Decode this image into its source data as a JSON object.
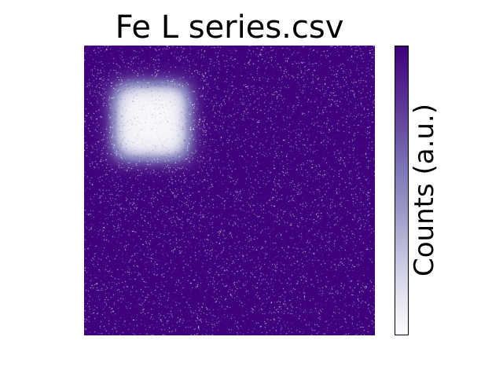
{
  "chart_data": {
    "type": "heatmap",
    "title": "Fe L series.csv",
    "xlabel": "",
    "ylabel": "",
    "axes_visible": false,
    "grid": false,
    "colormap": "Purples_r",
    "colorbar": {
      "label": "Counts (a.u.)",
      "ticks_visible": false,
      "placement": "right"
    },
    "background_level": 0.0,
    "noise_level": 0.08,
    "features": [
      {
        "shape": "rounded-square",
        "center": [
          0.23,
          0.26
        ],
        "half_width": 0.13,
        "softness": 0.07,
        "peak_level": 1.0
      }
    ]
  },
  "colors": {
    "low": "#3f007d",
    "high": "#fcfbfd"
  }
}
